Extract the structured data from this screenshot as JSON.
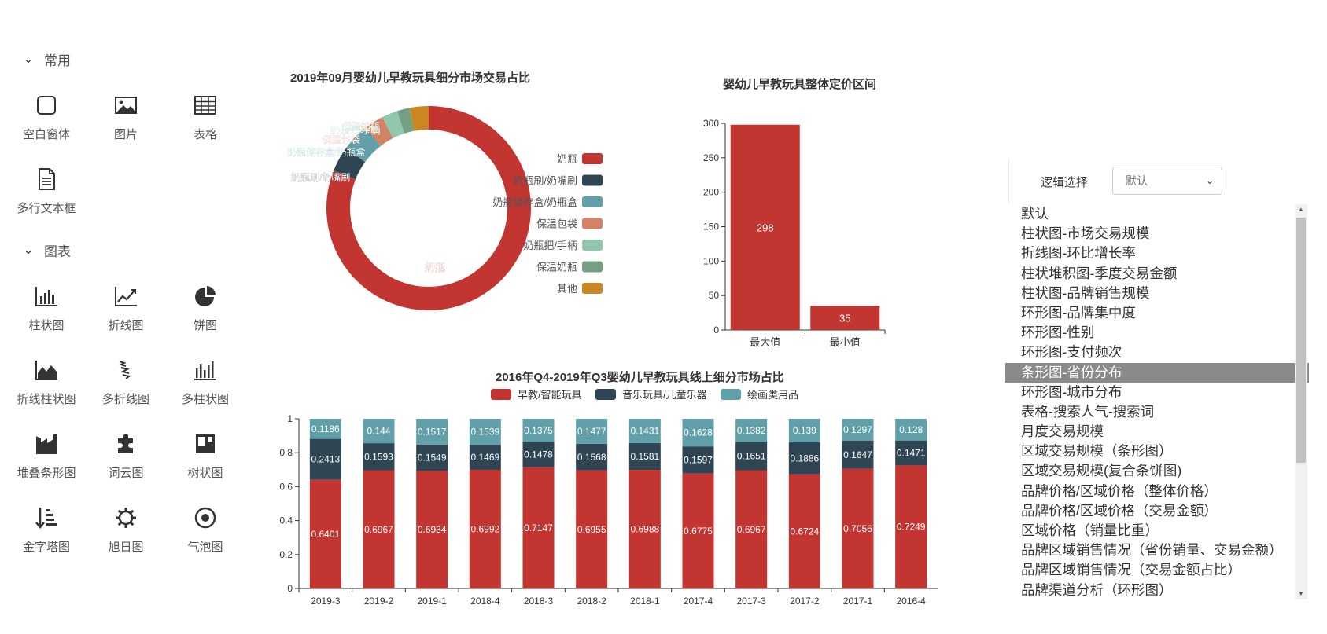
{
  "palette": {
    "sections": [
      {
        "label": "常用",
        "items": [
          {
            "label": "空白窗体",
            "icon": "blank-window-icon"
          },
          {
            "label": "图片",
            "icon": "image-icon"
          },
          {
            "label": "表格",
            "icon": "table-icon"
          },
          {
            "label": "多行文本框",
            "icon": "document-icon"
          }
        ]
      },
      {
        "label": "图表",
        "items": [
          {
            "label": "柱状图",
            "icon": "bar-chart-icon"
          },
          {
            "label": "折线图",
            "icon": "line-chart-icon"
          },
          {
            "label": "饼图",
            "icon": "pie-chart-icon"
          },
          {
            "label": "折线柱状图",
            "icon": "area-chart-icon"
          },
          {
            "label": "多折线图",
            "icon": "multi-line-icon"
          },
          {
            "label": "多柱状图",
            "icon": "multi-bar-icon"
          },
          {
            "label": "堆叠条形图",
            "icon": "stacked-bar-icon"
          },
          {
            "label": "词云图",
            "icon": "word-cloud-icon"
          },
          {
            "label": "树状图",
            "icon": "treemap-icon"
          },
          {
            "label": "金字塔图",
            "icon": "pyramid-icon"
          },
          {
            "label": "旭日图",
            "icon": "sunburst-icon"
          },
          {
            "label": "气泡图",
            "icon": "bubble-icon"
          }
        ]
      }
    ]
  },
  "right_panel": {
    "logic_label": "逻辑选择",
    "select_value": "默认",
    "list_items": [
      "默认",
      "柱状图-市场交易规模",
      "折线图-环比增长率",
      "柱状堆积图-季度交易金额",
      "柱状图-品牌销售规模",
      "环形图-品牌集中度",
      "环形图-性别",
      "环形图-支付频次",
      "条形图-省份分布",
      "环形图-城市分布",
      "表格-搜索人气-搜索词",
      "月度交易规模",
      "区域交易规模（条形图）",
      "区域交易规模(复合条饼图)",
      "品牌价格/区域价格（整体价格）",
      "品牌价格/区域价格（交易金额）",
      "区域价格（销量比重）",
      "品牌区域销售情况（省份销量、交易金额）",
      "品牌区域销售情况（交易金额占比）",
      "品牌渠道分析（环形图）"
    ],
    "selected_index": 8
  },
  "colors": {
    "red": "#c23531",
    "navy": "#2f4554",
    "teal": "#61a0a8",
    "salmon": "#d48265",
    "mint": "#91c7ae",
    "green": "#749f83",
    "orange": "#ca8622"
  },
  "chart_data": [
    {
      "type": "pie",
      "variant": "donut",
      "title": "2019年09月婴幼儿早教玩具细分市场交易占比",
      "legend_position": "right",
      "slices": [
        {
          "name": "奶瓶",
          "value": 0.81,
          "color": "#c23531"
        },
        {
          "name": "奶瓶刷/奶嘴刷",
          "value": 0.04,
          "color": "#2f4554"
        },
        {
          "name": "奶瓶储存盒/奶瓶盒",
          "value": 0.045,
          "color": "#61a0a8"
        },
        {
          "name": "保温包袋",
          "value": 0.03,
          "color": "#d48265"
        },
        {
          "name": "奶瓶把/手柄",
          "value": 0.025,
          "color": "#91c7ae"
        },
        {
          "name": "保温奶瓶",
          "value": 0.02,
          "color": "#749f83"
        },
        {
          "name": "其他",
          "value": 0.03,
          "color": "#ca8622"
        }
      ]
    },
    {
      "type": "bar",
      "title": "婴幼儿早教玩具整体定价区间",
      "categories": [
        "最大值",
        "最小值"
      ],
      "values": [
        298,
        35
      ],
      "value_labels": [
        "298",
        "35"
      ],
      "ylim": [
        0,
        300
      ],
      "yticks": [
        "0",
        "50",
        "100",
        "150",
        "200",
        "250",
        "300"
      ],
      "grid": false,
      "color": "#c23531"
    },
    {
      "type": "bar",
      "stacked": true,
      "title": "2016年Q4-2019年Q3婴幼儿早教玩具线上细分市场占比",
      "legend_position": "top",
      "categories": [
        "2019-3",
        "2019-2",
        "2019-1",
        "2018-4",
        "2018-3",
        "2018-2",
        "2018-1",
        "2017-4",
        "2017-3",
        "2017-2",
        "2017-1",
        "2016-4"
      ],
      "ylim": [
        0,
        1
      ],
      "yticks": [
        "0",
        "0.2",
        "0.4",
        "0.6",
        "0.8",
        "1"
      ],
      "grid": false,
      "series": [
        {
          "name": "早教/智能玩具",
          "color": "#c23531",
          "values": [
            0.6401,
            0.6967,
            0.6934,
            0.6992,
            0.7147,
            0.6955,
            0.6988,
            0.6775,
            0.6967,
            0.6724,
            0.7056,
            0.7249
          ],
          "labels": [
            "0.6401",
            "0.6967",
            "0.6934",
            "0.6992",
            "0.7147",
            "0.6955",
            "0.6988",
            "0.6775",
            "0.6967",
            "0.6724",
            "0.7056",
            "0.7249"
          ]
        },
        {
          "name": "音乐玩具/儿童乐器",
          "color": "#2f4554",
          "values": [
            0.2413,
            0.1593,
            0.1549,
            0.1469,
            0.1478,
            0.1568,
            0.1581,
            0.1597,
            0.1651,
            0.1886,
            0.1647,
            0.1471
          ],
          "labels": [
            "0.2413",
            "0.1593",
            "0.1549",
            "0.1469",
            "0.1478",
            "0.1568",
            "0.1581",
            "0.1597",
            "0.1651",
            "0.1886",
            "0.1647",
            "0.1471"
          ]
        },
        {
          "name": "绘画类用品",
          "color": "#61a0a8",
          "values": [
            0.1186,
            0.144,
            0.1517,
            0.1539,
            0.1375,
            0.1477,
            0.1431,
            0.1628,
            0.1382,
            0.139,
            0.1297,
            0.128
          ],
          "labels": [
            "0.1186",
            "0.144",
            "0.1517",
            "0.1539",
            "0.1375",
            "0.1477",
            "0.1431",
            "0.1628",
            "0.1382",
            "0.139",
            "0.1297",
            "0.128"
          ]
        }
      ]
    }
  ]
}
